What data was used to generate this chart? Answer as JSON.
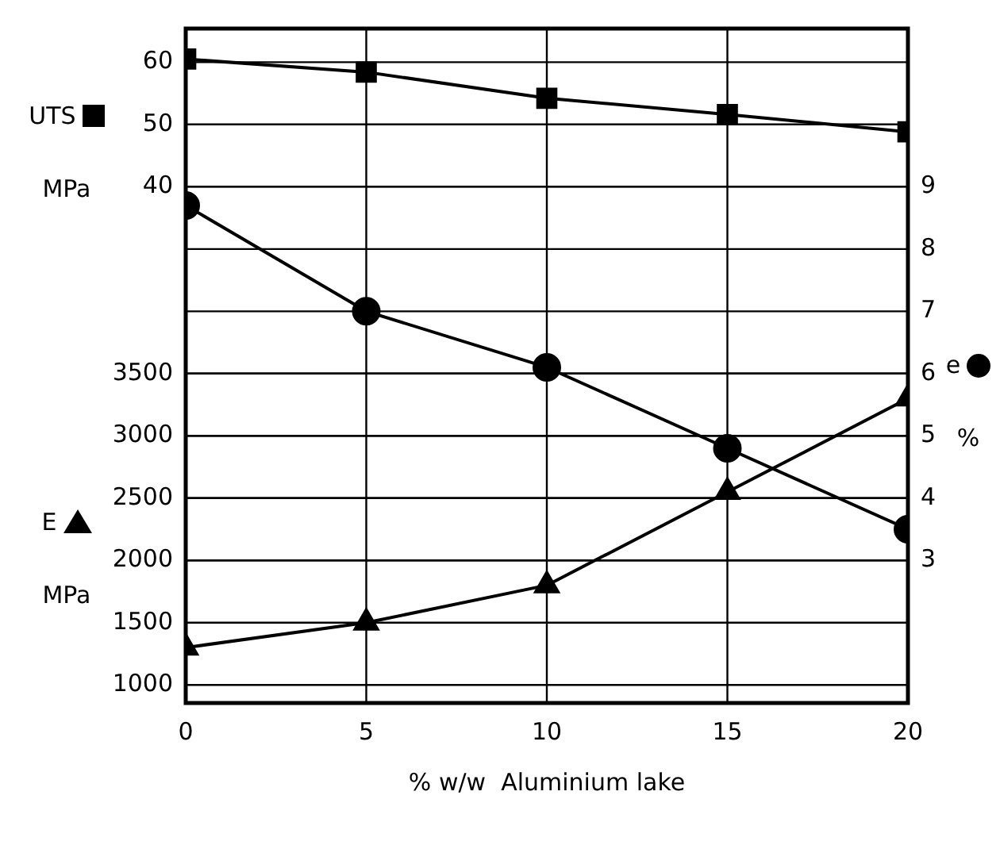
{
  "chart_data": {
    "type": "line",
    "xlabel": "% w/w  Aluminium lake",
    "ylabel": "MPa",
    "y2label": "%",
    "y3label": "MPa",
    "x": [
      0,
      5,
      10,
      15,
      20
    ],
    "series": [
      {
        "name": "UTS",
        "color": "#000000",
        "marker": "square",
        "values": [
          60.5,
          58.4,
          54.2,
          51.6,
          48.8
        ]
      },
      {
        "name": "e",
        "color": "#000000",
        "marker": "circle",
        "axis": "y2",
        "values": [
          8.7,
          7.0,
          6.1,
          4.8,
          3.5
        ]
      },
      {
        "name": "E",
        "color": "#000000",
        "marker": "triangle",
        "axis": "y3",
        "values": [
          1300,
          1500,
          1800,
          2550,
          3300
        ]
      }
    ],
    "xlim": [
      0,
      20
    ],
    "xticks": [
      0,
      5,
      10,
      15,
      20
    ],
    "ylim": [
      -43,
      65.4
    ],
    "yticks": [
      40,
      50,
      60
    ],
    "y2lim": [
      0.71,
      11.54
    ],
    "y2ticks": [
      3,
      4,
      5,
      6,
      7,
      8,
      9
    ],
    "y3lim": [
      855,
      6270
    ],
    "y3ticks": [
      1000,
      1500,
      2000,
      2500,
      3000,
      3500
    ],
    "grid": true,
    "legend": "left",
    "line_style": "solid"
  }
}
